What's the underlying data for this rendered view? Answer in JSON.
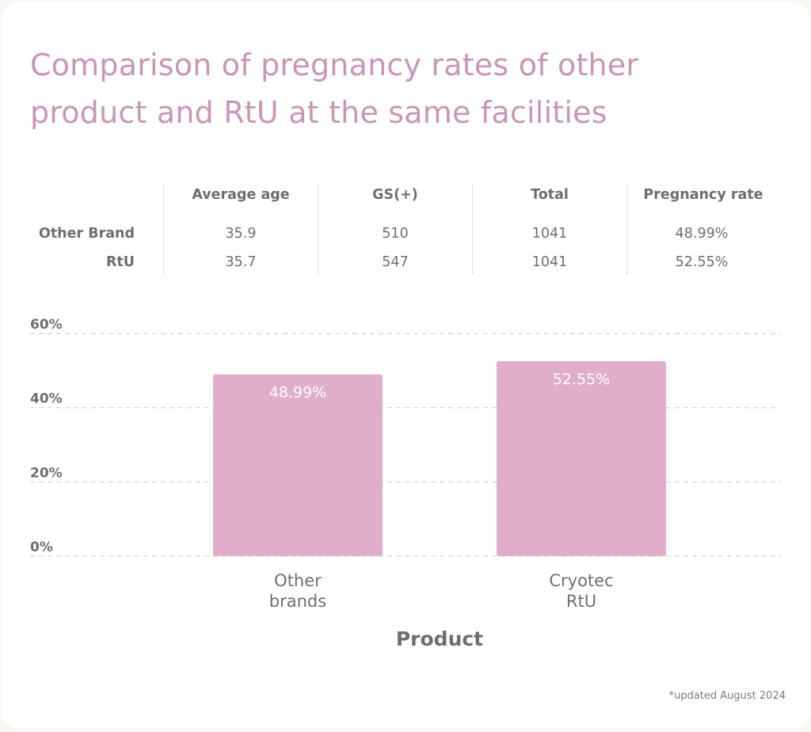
{
  "title": "Comparison of pregnancy rates of other product and RtU at the same facilities",
  "stats_table": {
    "columns": [
      "Average age",
      "GS(+)",
      "Total",
      "Pregnancy rate"
    ],
    "rows": [
      {
        "label": "Other Brand",
        "values": [
          "35.9",
          "510",
          "1041",
          "48.99%"
        ]
      },
      {
        "label": "RtU",
        "values": [
          "35.7",
          "547",
          "1041",
          "52.55%"
        ]
      }
    ]
  },
  "colors": {
    "title": "#c996b6",
    "bar": "#e0aecb",
    "bar_label": "#ffffff",
    "text": "#6e6e6e",
    "grid": "#d0d0d0"
  },
  "chart_data": {
    "type": "bar",
    "title": "",
    "categories": [
      "Other brands",
      "Cryotec RtU"
    ],
    "category_lines": [
      [
        "Other",
        "brands"
      ],
      [
        "Cryotec",
        "RtU"
      ]
    ],
    "values": [
      48.99,
      52.55
    ],
    "data_labels": [
      "48.99%",
      "52.55%"
    ],
    "xlabel": "Product",
    "ylabel": "",
    "ylim": [
      0,
      60
    ],
    "yticks": [
      0,
      20,
      40,
      60
    ],
    "ytick_labels": [
      "0%",
      "20%",
      "40%",
      "60%"
    ],
    "grid": true,
    "legend": "none"
  },
  "footnote": "*updated August 2024"
}
